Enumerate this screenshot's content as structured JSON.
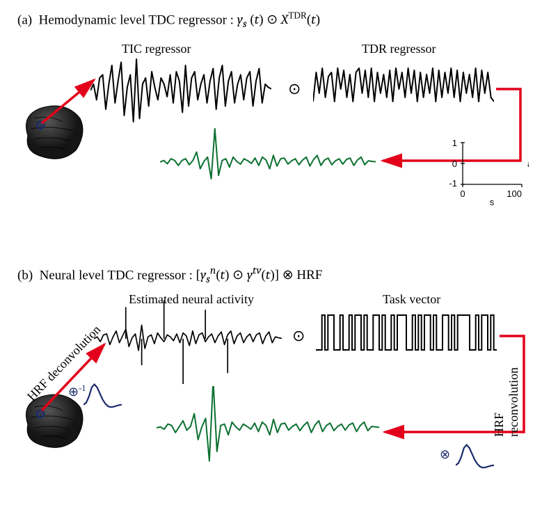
{
  "panelA": {
    "label": "(a)",
    "title_prefix": "Hemodynamic level TDC regressor : ",
    "formula_html": "<span class='math'>y<sub>s</sub></span> (<span class='math'>t</span>) ⊙ <span class='math'>X</span><span class='sup'>TDR</span>(<span class='math'>t</span>)",
    "left_label": "TIC regressor",
    "right_label": "TDR regressor",
    "yaxis": {
      "ticks": [
        -1,
        0,
        1
      ],
      "label": "a. u."
    },
    "xaxis": {
      "ticks": [
        0,
        100
      ],
      "label": "s"
    }
  },
  "panelB": {
    "label": "(b)",
    "title_prefix": "Neural level TDC regressor : ",
    "formula_html": "[<span class='math'>y<sub>s</sub><sup>n</sup></span>(<span class='math'>t</span>) ⊙ <span class='math'>y<sup>tv</sup></span>(<span class='math'>t</span>)] ⊗ <span class='rm'>HRF</span>",
    "left_label": "Estimated neural activity",
    "right_label": "Task vector",
    "decon_label": "HRF deconvolution",
    "recon_label": "HRF reconvolution",
    "deconv_symbol": "⊕",
    "deconv_sup": "-1",
    "conv_symbol": "⊗"
  },
  "colors": {
    "signal_black": "#000000",
    "signal_green": "#0c7030",
    "arrow_red": "#e2001a",
    "hrf_blue": "#1a2a6c",
    "brain_dark": "#2a2a2a",
    "brain_shadow": "#111111",
    "brain_highlight": "#4a4a4a",
    "axis": "#000000"
  },
  "signals": {
    "tic": [
      0,
      0.2,
      -0.3,
      0.4,
      0.5,
      -0.6,
      0.2,
      0.8,
      -0.4,
      0.3,
      0.9,
      -0.8,
      0.1,
      0.5,
      -1.0,
      1.0,
      -0.9,
      0.2,
      0.4,
      -0.5,
      0.6,
      0.1,
      -0.3,
      0.4,
      0.2,
      -0.2,
      0.5,
      -0.4,
      0.6,
      0.3,
      -0.7,
      0.8,
      -0.5,
      0.4,
      0.6,
      -0.3,
      0.2,
      0.5,
      -0.4,
      0.3,
      0.7,
      -0.6,
      0.4,
      0.8,
      -0.5,
      0.3,
      0.6,
      -0.4,
      0.2,
      0.5,
      -0.3,
      0.4,
      0.6,
      -0.5,
      0.3,
      0.7,
      -0.4,
      0.2,
      0.1,
      0.05
    ],
    "tdr": [
      0.1,
      0.8,
      0.3,
      0.9,
      0.2,
      0.7,
      0.8,
      0.1,
      0.9,
      0.4,
      0.85,
      0.2,
      0.75,
      0.1,
      0.8,
      0.9,
      0.3,
      0.85,
      0.2,
      0.9,
      0.1,
      0.8,
      0.3,
      0.75,
      0.2,
      0.85,
      0.1,
      0.9,
      0.4,
      0.8,
      0.2,
      0.9,
      0.3,
      0.85,
      0.1,
      0.8,
      0.2,
      0.75,
      0.3,
      0.9,
      0.1,
      0.85,
      0.2,
      0.8,
      0.3,
      0.9,
      0.2,
      0.85,
      0.1,
      0.8,
      0.3,
      0.75,
      0.2,
      0.9,
      0.1,
      0.85,
      0.3,
      0.8,
      0.2,
      0.1
    ],
    "hadamard_a": [
      0,
      0.05,
      -0.05,
      0.1,
      0.05,
      -0.1,
      0.05,
      0.1,
      -0.08,
      0.05,
      0.3,
      -0.2,
      0.02,
      0.15,
      -0.5,
      1.0,
      -0.4,
      0.05,
      0.1,
      -0.15,
      0.15,
      0.02,
      -0.06,
      0.1,
      0.04,
      -0.04,
      0.12,
      -0.1,
      0.15,
      0.06,
      -0.2,
      0.2,
      -0.12,
      0.1,
      0.12,
      -0.06,
      0.04,
      0.1,
      -0.08,
      0.06,
      0.15,
      -0.12,
      0.08,
      0.2,
      -0.1,
      0.06,
      0.12,
      -0.08,
      0.04,
      0.1,
      -0.06,
      0.08,
      0.12,
      -0.1,
      0.06,
      0.15,
      -0.08,
      0.04,
      0.02,
      0.01
    ],
    "neural": [
      0,
      0.1,
      -0.15,
      0.2,
      0.25,
      -0.3,
      0.1,
      0.4,
      -0.2,
      0.15,
      0.5,
      -0.4,
      0.05,
      0.25,
      -0.6,
      0.7,
      -0.5,
      0.1,
      0.2,
      -0.25,
      0.3,
      0.05,
      -0.15,
      0.2,
      0.1,
      -0.1,
      0.25,
      -0.2,
      0.3,
      0.15,
      -0.35,
      0.4,
      -0.25,
      0.2,
      0.3,
      -0.15,
      0.1,
      0.25,
      -0.2,
      0.15,
      0.35,
      -0.3,
      0.2,
      0.4,
      -0.25,
      0.15,
      0.3,
      -0.2,
      0.1,
      0.25,
      -0.15,
      0.2,
      0.3,
      -0.25,
      0.15,
      0.35,
      -0.2,
      0.1,
      0.05,
      0.02,
      0,
      0.1,
      -0.15,
      0.2,
      0.25,
      -0.3,
      0.1,
      0.4,
      -0.2,
      0.15,
      0.5,
      -0.4,
      0.05,
      0.25,
      -0.6,
      0.7,
      -0.5,
      0.1,
      0.2,
      -0.25
    ],
    "neural_spikes": [
      [
        10,
        1.2
      ],
      [
        15,
        -1.0
      ],
      [
        22,
        1.5
      ],
      [
        28,
        -1.8
      ],
      [
        35,
        1.1
      ],
      [
        42,
        -1.3
      ]
    ],
    "task_vector": [
      0,
      0,
      1,
      0,
      1,
      1,
      0,
      0,
      1,
      0,
      0,
      1,
      0,
      1,
      1,
      0,
      1,
      0,
      0,
      1,
      1,
      0,
      1,
      0,
      0,
      1,
      0,
      1,
      1,
      1,
      0,
      0,
      1,
      0,
      1,
      0,
      1,
      1,
      0,
      1,
      0,
      0,
      1,
      1,
      0,
      1,
      0,
      1,
      1,
      1,
      1,
      0,
      0,
      1,
      0,
      1,
      1,
      0,
      1,
      0
    ],
    "hadamard_b": [
      0,
      0.02,
      -0.03,
      0.08,
      0.05,
      -0.1,
      0.02,
      0.15,
      -0.05,
      0.03,
      0.3,
      -0.25,
      0.02,
      0.2,
      -0.7,
      1.0,
      -0.5,
      0.05,
      0.08,
      -0.15,
      0.12,
      0.02,
      -0.05,
      0.08,
      0.03,
      -0.03,
      0.1,
      -0.08,
      0.12,
      0.05,
      -0.15,
      0.18,
      -0.1,
      0.08,
      0.1,
      -0.05,
      0.03,
      0.08,
      -0.06,
      0.05,
      0.12,
      -0.1,
      0.06,
      0.15,
      -0.08,
      0.05,
      0.1,
      -0.06,
      0.03,
      0.08,
      -0.05,
      0.06,
      0.1,
      -0.08,
      0.05,
      0.12,
      -0.06,
      0.03,
      0.02,
      0.01
    ],
    "hrf": [
      0,
      0.1,
      0.4,
      0.85,
      1.0,
      0.85,
      0.55,
      0.25,
      0.05,
      -0.08,
      -0.12,
      -0.1,
      -0.06,
      -0.02,
      0
    ]
  }
}
